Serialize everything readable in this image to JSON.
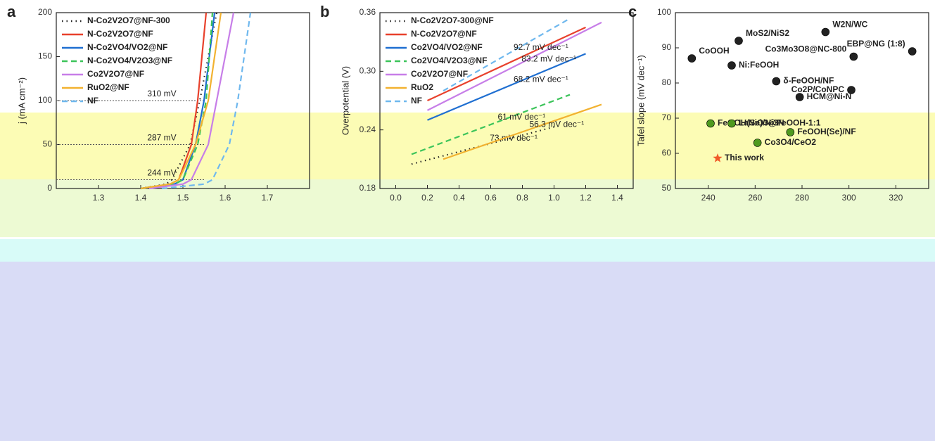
{
  "chart_data": [
    {
      "type": "line",
      "panel_label": "a",
      "y_label": "j (mA cm⁻²)",
      "xlim": [
        1.2,
        1.8
      ],
      "xticks": [
        1.3,
        1.4,
        1.5,
        1.6,
        1.7
      ],
      "ylim": [
        0,
        200
      ],
      "yticks": [
        0,
        50,
        100,
        150,
        200
      ],
      "series": [
        {
          "name": "N-Co2V2O7@NF-300",
          "color": "#222222",
          "style": "dotted",
          "x": [
            1.4,
            1.46,
            1.474,
            1.517,
            1.54,
            1.58
          ],
          "values": [
            0,
            5,
            10,
            50,
            100,
            200
          ]
        },
        {
          "name": "N-Co2V2O7@NF",
          "color": "#e8412c",
          "style": "solid",
          "x": [
            1.4,
            1.47,
            1.49,
            1.52,
            1.535,
            1.555
          ],
          "values": [
            0,
            5,
            10,
            50,
            100,
            200
          ]
        },
        {
          "name": "N-Co2VO4/VO2@NF",
          "color": "#1f6fd1",
          "style": "solid",
          "x": [
            1.4,
            1.48,
            1.5,
            1.53,
            1.55,
            1.575
          ],
          "values": [
            0,
            5,
            10,
            50,
            100,
            200
          ]
        },
        {
          "name": "N-Co2VO4/V2O3@NF",
          "color": "#3cc45a",
          "style": "dashed",
          "x": [
            1.4,
            1.48,
            1.5,
            1.535,
            1.555,
            1.57
          ],
          "values": [
            0,
            5,
            10,
            50,
            100,
            200
          ]
        },
        {
          "name": "Co2V2O7@NF",
          "color": "#c77ee8",
          "style": "solid",
          "x": [
            1.42,
            1.5,
            1.52,
            1.56,
            1.58,
            1.62
          ],
          "values": [
            0,
            5,
            10,
            50,
            100,
            200
          ]
        },
        {
          "name": "RuO2@NF",
          "color": "#f2b230",
          "style": "solid",
          "x": [
            1.4,
            1.47,
            1.49,
            1.53,
            1.56,
            1.59
          ],
          "values": [
            0,
            5,
            10,
            50,
            100,
            200
          ]
        },
        {
          "name": "NF",
          "color": "#6fb8ee",
          "style": "dashed",
          "x": [
            1.45,
            1.55,
            1.57,
            1.61,
            1.63,
            1.66
          ],
          "values": [
            0,
            5,
            10,
            50,
            100,
            200
          ]
        }
      ],
      "annotations": [
        {
          "text": "310 mV",
          "y": 100
        },
        {
          "text": "287 mV",
          "y": 50
        },
        {
          "text": "244 mV",
          "y": 10
        }
      ]
    },
    {
      "type": "line",
      "panel_label": "b",
      "y_label": "Overpotential (V)",
      "xlim": [
        -0.1,
        1.5
      ],
      "xticks": [
        {
          "value": 0,
          "label": "0.0"
        },
        0.2,
        0.4,
        0.6,
        0.8,
        {
          "value": 1,
          "label": "1.0"
        },
        1.2,
        1.4
      ],
      "ylim": [
        0.18,
        0.36
      ],
      "yticks": [
        0.18,
        0.24,
        {
          "value": 0.3,
          "label": "0.30"
        },
        0.36
      ],
      "series": [
        {
          "name": "N-Co2V2O7-300@NF",
          "color": "#222222",
          "style": "dotted",
          "x": [
            0.1,
            1.0
          ],
          "values": [
            0.205,
            0.243
          ],
          "slope_label": "73 mV dec⁻¹"
        },
        {
          "name": "N-Co2V2O7@NF",
          "color": "#e8412c",
          "style": "solid",
          "x": [
            0.2,
            1.2
          ],
          "values": [
            0.27,
            0.345
          ]
        },
        {
          "name": "Co2VO4/VO2@NF",
          "color": "#1f6fd1",
          "style": "solid",
          "x": [
            0.2,
            1.2
          ],
          "values": [
            0.25,
            0.318
          ],
          "slope_label": "68.2 mV dec⁻¹"
        },
        {
          "name": "Co2VO4/V2O3@NF",
          "color": "#3cc45a",
          "style": "dashed",
          "x": [
            0.1,
            1.1
          ],
          "values": [
            0.215,
            0.276
          ],
          "slope_label": "61 mV dec⁻¹"
        },
        {
          "name": "Co2V2O7@NF",
          "color": "#c77ee8",
          "style": "solid",
          "x": [
            0.2,
            1.3
          ],
          "values": [
            0.26,
            0.35
          ],
          "slope_label": "83.2 mV dec⁻¹"
        },
        {
          "name": "RuO2",
          "color": "#f2b230",
          "style": "solid",
          "x": [
            0.3,
            1.3
          ],
          "values": [
            0.21,
            0.266
          ],
          "slope_label": "56.3 mV dec⁻¹"
        },
        {
          "name": "NF",
          "color": "#6fb8ee",
          "style": "dashed",
          "x": [
            0.3,
            1.1
          ],
          "values": [
            0.28,
            0.354
          ],
          "slope_label": "92.7 mV dec⁻¹"
        }
      ]
    },
    {
      "type": "scatter",
      "panel_label": "c",
      "y_label": "Tafel slope (mV dec⁻¹)",
      "xlim": [
        226,
        334
      ],
      "xticks": [
        240,
        260,
        280,
        300,
        320
      ],
      "ylim": [
        50,
        100
      ],
      "yticks": [
        50,
        60,
        70,
        80,
        90,
        100
      ],
      "labels": [
        "CoOOH",
        "MoS2/NiS2",
        "W2N/WC",
        "EBP@NG (1:8)",
        "Co3Mo3O8@NC-800",
        "Ni:FeOOH",
        "δ-FeOOH/NF",
        "Co2P/CoNPC",
        "HCM@Ni-N",
        "FeOOH(Se)/Ni3N",
        "LaNiO3@FeOOH-1:1",
        "FeOOH(Se)/NF",
        "Co3O4/CeO2",
        "This work"
      ],
      "x": [
        233,
        253,
        290,
        327,
        302,
        250,
        269,
        301,
        279,
        241,
        250,
        275,
        261,
        244
      ],
      "values": [
        87,
        92,
        94.5,
        89,
        87.5,
        85,
        80.5,
        78,
        76,
        68.5,
        68.5,
        66,
        63,
        58.6
      ],
      "colors": [
        "#222222",
        "#222222",
        "#222222",
        "#222222",
        "#222222",
        "#222222",
        "#222222",
        "#222222",
        "#222222",
        "#4f9a1f",
        "#4f9a1f",
        "#4f9a1f",
        "#4f9a1f",
        "#f05a28"
      ]
    }
  ]
}
